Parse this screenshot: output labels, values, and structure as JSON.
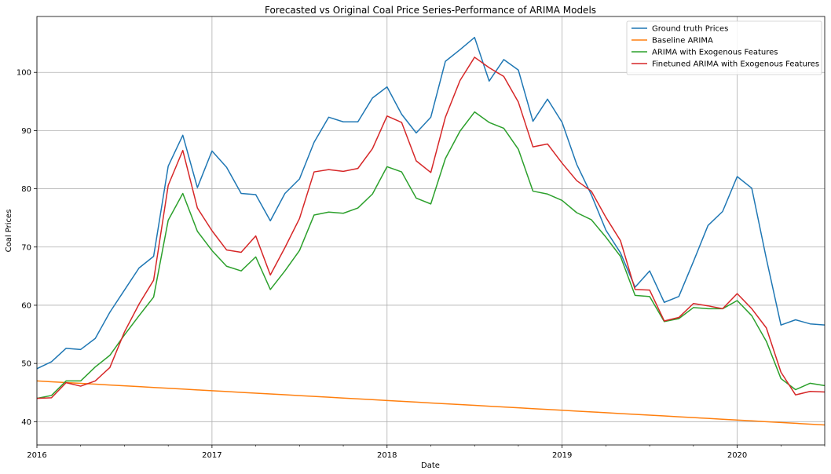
{
  "chart_data": {
    "type": "line",
    "title": "Forecasted vs Original Coal Price Series-Performance of ARIMA Models",
    "xlabel": "Date",
    "ylabel": "Coal Prices",
    "x_start": "2016-01",
    "x_end": "2020-07",
    "ylim": [
      36,
      109.6
    ],
    "x_ticks": [
      "2016",
      "2017",
      "2018",
      "2019",
      "2020"
    ],
    "y_ticks": [
      40,
      50,
      60,
      70,
      80,
      90,
      100
    ],
    "grid": true,
    "legend_position": "top-right",
    "x": [
      "2016-01",
      "2016-02",
      "2016-03",
      "2016-04",
      "2016-05",
      "2016-06",
      "2016-07",
      "2016-08",
      "2016-09",
      "2016-10",
      "2016-11",
      "2016-12",
      "2017-01",
      "2017-02",
      "2017-03",
      "2017-04",
      "2017-05",
      "2017-06",
      "2017-07",
      "2017-08",
      "2017-09",
      "2017-10",
      "2017-11",
      "2017-12",
      "2018-01",
      "2018-02",
      "2018-03",
      "2018-04",
      "2018-05",
      "2018-06",
      "2018-07",
      "2018-08",
      "2018-09",
      "2018-10",
      "2018-11",
      "2018-12",
      "2019-01",
      "2019-02",
      "2019-03",
      "2019-04",
      "2019-05",
      "2019-06",
      "2019-07",
      "2019-08",
      "2019-09",
      "2019-10",
      "2019-11",
      "2019-12",
      "2020-01",
      "2020-02",
      "2020-03",
      "2020-04",
      "2020-05",
      "2020-06",
      "2020-07"
    ],
    "series": [
      {
        "name": "Ground truth Prices",
        "color": "#1f77b4",
        "values": [
          49.1,
          50.3,
          52.6,
          52.4,
          54.3,
          58.8,
          62.6,
          66.4,
          68.4,
          83.9,
          89.2,
          80.2,
          86.5,
          83.7,
          79.2,
          79.0,
          74.5,
          79.2,
          81.7,
          88.0,
          92.3,
          91.5,
          91.5,
          95.6,
          97.5,
          92.8,
          89.6,
          92.3,
          101.9,
          103.9,
          106.0,
          98.5,
          102.2,
          100.4,
          91.6,
          95.4,
          91.4,
          84.2,
          79.0,
          72.9,
          69.0,
          63.1,
          65.9,
          60.5,
          61.5,
          67.5,
          73.7,
          76.1,
          82.1,
          80.1,
          68.0,
          56.6,
          57.5,
          56.8,
          56.6
        ]
      },
      {
        "name": "Baseline ARIMA",
        "color": "#ff7f0e",
        "values": [
          47.0,
          46.86,
          46.72,
          46.58,
          46.44,
          46.3,
          46.16,
          46.02,
          45.88,
          45.74,
          45.6,
          45.46,
          45.32,
          45.18,
          45.04,
          44.9,
          44.76,
          44.62,
          44.48,
          44.34,
          44.2,
          44.06,
          43.92,
          43.78,
          43.64,
          43.5,
          43.36,
          43.22,
          43.08,
          42.94,
          42.8,
          42.66,
          42.52,
          42.38,
          42.24,
          42.1,
          41.96,
          41.82,
          41.68,
          41.54,
          41.4,
          41.26,
          41.12,
          40.98,
          40.84,
          40.7,
          40.56,
          40.42,
          40.28,
          40.14,
          40.0,
          39.86,
          39.72,
          39.58,
          39.44
        ]
      },
      {
        "name": "ARIMA with Exogenous Features",
        "color": "#2ca02c",
        "values": [
          44.0,
          44.5,
          47.0,
          47.0,
          49.4,
          51.4,
          54.9,
          58.2,
          61.4,
          74.6,
          79.2,
          72.7,
          69.4,
          66.7,
          65.9,
          68.3,
          62.7,
          65.9,
          69.4,
          75.5,
          76.0,
          75.8,
          76.7,
          79.1,
          83.8,
          82.9,
          78.4,
          77.4,
          85.2,
          89.9,
          93.2,
          91.4,
          90.4,
          86.8,
          79.6,
          79.1,
          78.0,
          75.9,
          74.7,
          71.7,
          68.4,
          61.7,
          61.5,
          57.2,
          57.7,
          59.6,
          59.4,
          59.4,
          60.8,
          58.2,
          53.8,
          47.4,
          45.5,
          46.6,
          46.2
        ]
      },
      {
        "name": "Finetuned ARIMA with Exogenous Features",
        "color": "#d62728",
        "values": [
          44.0,
          44.1,
          46.7,
          46.1,
          47.0,
          49.3,
          55.4,
          60.2,
          64.3,
          80.6,
          86.6,
          76.7,
          72.8,
          69.5,
          69.1,
          71.9,
          65.2,
          69.9,
          74.9,
          82.9,
          83.3,
          83.0,
          83.5,
          86.9,
          92.5,
          91.4,
          84.8,
          82.8,
          92.3,
          98.6,
          102.6,
          100.8,
          99.3,
          94.9,
          87.2,
          87.7,
          84.4,
          81.4,
          79.6,
          75.1,
          71.1,
          62.7,
          62.6,
          57.3,
          57.9,
          60.3,
          59.9,
          59.4,
          62.0,
          59.4,
          56.1,
          48.5,
          44.6,
          45.2,
          45.1
        ]
      }
    ]
  }
}
